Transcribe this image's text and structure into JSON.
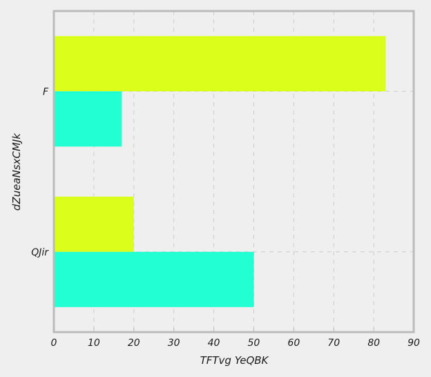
{
  "chart_data": {
    "type": "bar",
    "orientation": "horizontal",
    "categories": [
      "F",
      "QJir"
    ],
    "series": [
      {
        "color": "#dbff1a",
        "values": [
          83,
          20
        ]
      },
      {
        "color": "#22ffd2",
        "values": [
          17,
          50
        ]
      }
    ],
    "xlabel": "TFTvg YeQBK",
    "ylabel": "dZueaNsxCMJk",
    "xlim": [
      0,
      90
    ],
    "xticks": [
      0,
      10,
      20,
      30,
      40,
      50,
      60,
      70,
      80,
      90
    ],
    "grid": true,
    "background": "#efefef",
    "frame_color": "#bbbbbb",
    "grid_color": "#cccccc"
  }
}
